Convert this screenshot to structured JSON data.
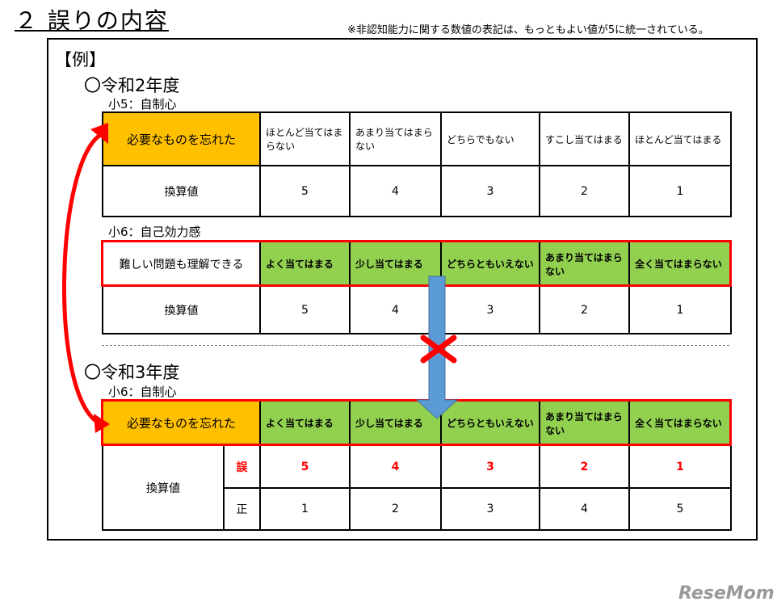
{
  "title": "２ 誤りの内容",
  "note": "※非認知能力に関する数値の表記は、もっともよい値が5に統一されている。",
  "example_label": "【例】",
  "r2": {
    "heading": "〇令和2年度",
    "t1": {
      "label": "小5：自制心",
      "item": "必要なものを忘れた",
      "options": [
        "ほとんど当てはまらない",
        "あまり当てはまらない",
        "どちらでもない",
        "すこし当てはまる",
        "ほとんど当てはまる"
      ],
      "row_label": "換算値",
      "values": [
        "5",
        "4",
        "3",
        "2",
        "1"
      ]
    },
    "t2": {
      "label": "小6：自己効力感",
      "item": "難しい問題も理解できる",
      "options": [
        "よく当てはまる",
        "少し当てはまる",
        "どちらともいえない",
        "あまり当てはまらない",
        "全く当てはまらない"
      ],
      "row_label": "換算値",
      "values": [
        "5",
        "4",
        "3",
        "2",
        "1"
      ]
    }
  },
  "r3": {
    "heading": "〇令和3年度",
    "t3": {
      "label": "小6：自制心",
      "item": "必要なものを忘れた",
      "options": [
        "よく当てはまる",
        "少し当てはまる",
        "どちらともいえない",
        "あまり当てはまらない",
        "全く当てはまらない"
      ],
      "row_label": "換算値",
      "wrong_label": "誤",
      "wrong": [
        "5",
        "4",
        "3",
        "2",
        "1"
      ],
      "right_label": "正",
      "right": [
        "1",
        "2",
        "3",
        "4",
        "5"
      ]
    }
  },
  "logo": "ReseMom",
  "colors": {
    "orange": "#ffc000",
    "green": "#92d050",
    "red": "#ff0000",
    "blue_arrow": "#5b9bd5"
  }
}
